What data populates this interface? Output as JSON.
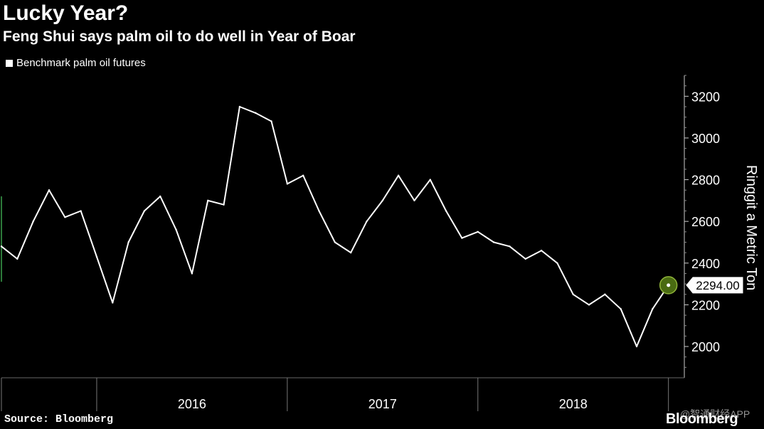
{
  "header": {
    "title": "Lucky Year?",
    "subtitle": "Feng Shui says palm oil to do well in Year of Boar"
  },
  "footer": {
    "source": "Source: Bloomberg",
    "brand": "Bloomberg",
    "watermark": "@智通财经APP"
  },
  "chart_data": {
    "type": "line",
    "title": "Lucky Year?",
    "subtitle": "Feng Shui says palm oil to do well in Year of Boar",
    "ylabel": "Ringgit a Metric Ton",
    "ylim": [
      1850,
      3300
    ],
    "yticks": [
      2000,
      2200,
      2400,
      2600,
      2800,
      3000,
      3200
    ],
    "xticks": [
      "2016",
      "2017",
      "2018"
    ],
    "x_range": [
      "2015-07",
      "2019-02"
    ],
    "legend": "top-left",
    "last_value_label": "2294.00",
    "colors": {
      "line": "#ffffff",
      "marker": "#4a6b12",
      "background": "#000000"
    },
    "series": [
      {
        "name": "Benchmark palm oil futures",
        "x": [
          "2015-07",
          "2015-08",
          "2015-09",
          "2015-10",
          "2015-11",
          "2015-12",
          "2016-01",
          "2016-02",
          "2016-03",
          "2016-04",
          "2016-05",
          "2016-06",
          "2016-07",
          "2016-08",
          "2016-09",
          "2016-10",
          "2016-11",
          "2016-12",
          "2017-01",
          "2017-02",
          "2017-03",
          "2017-04",
          "2017-05",
          "2017-06",
          "2017-07",
          "2017-08",
          "2017-09",
          "2017-10",
          "2017-11",
          "2017-12",
          "2018-01",
          "2018-02",
          "2018-03",
          "2018-04",
          "2018-05",
          "2018-06",
          "2018-07",
          "2018-08",
          "2018-09",
          "2018-10",
          "2018-11",
          "2018-12",
          "2019-01"
        ],
        "values": [
          2480,
          2420,
          2600,
          2750,
          2620,
          2650,
          2430,
          2210,
          2500,
          2650,
          2720,
          2560,
          2350,
          2700,
          2680,
          3150,
          3120,
          3080,
          2780,
          2820,
          2650,
          2500,
          2450,
          2600,
          2700,
          2820,
          2700,
          2800,
          2650,
          2520,
          2550,
          2500,
          2480,
          2420,
          2460,
          2400,
          2250,
          2200,
          2250,
          2180,
          2000,
          2180,
          2294
        ]
      }
    ]
  }
}
